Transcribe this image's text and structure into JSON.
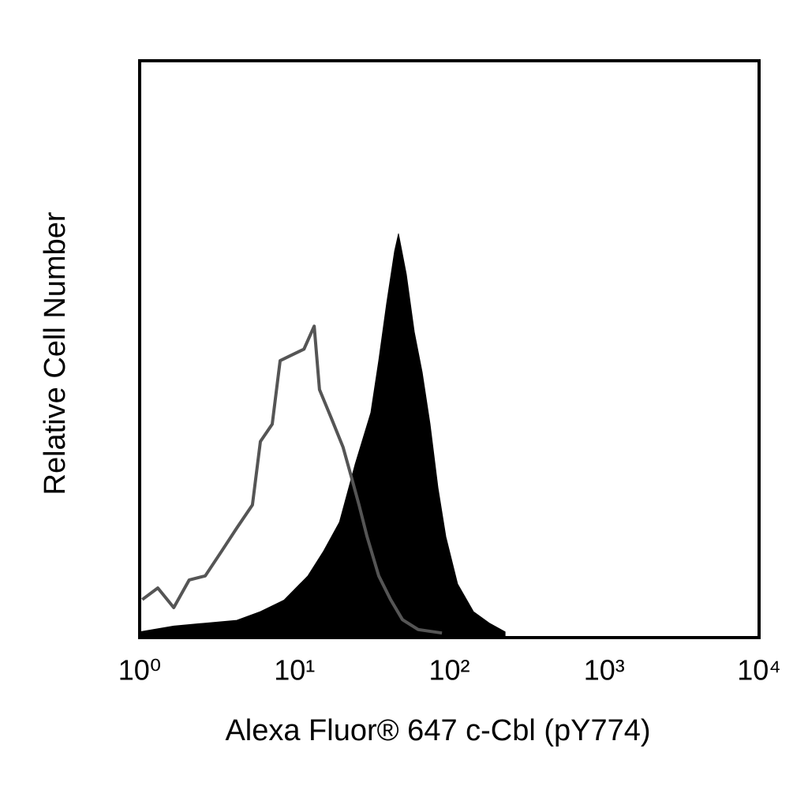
{
  "chart_data": {
    "type": "line",
    "x_label": "Alexa Fluor® 647 c-Cbl (pY774)",
    "y_label": "Relative Cell Number",
    "xscale": "log",
    "xlim": [
      1,
      10000
    ],
    "xticks": [
      {
        "value": 1,
        "label": "10⁰"
      },
      {
        "value": 10,
        "label": "10¹"
      },
      {
        "value": 100,
        "label": "10²"
      },
      {
        "value": 1000,
        "label": "10³"
      },
      {
        "value": 10000,
        "label": "10⁴"
      }
    ],
    "ylim": [
      0,
      100
    ],
    "grid": false,
    "series": [
      {
        "color": "#000000",
        "fill": true,
        "x": [
          1,
          1.66,
          2.65,
          4.24,
          6.02,
          8.56,
          12.2,
          15.4,
          19.5,
          24.6,
          31.1,
          35.0,
          39.4,
          44.3,
          46.9,
          52.7,
          59.3,
          66.7,
          75.0,
          84.4,
          94.9,
          113,
          143,
          181,
          229
        ],
        "values": [
          1,
          2,
          2.5,
          3,
          4.5,
          6.5,
          10.7,
          15,
          20,
          30,
          39,
          48,
          58,
          67,
          70,
          63,
          53,
          46,
          37,
          26,
          17.5,
          9.3,
          4.5,
          2.5,
          1
        ]
      },
      {
        "color": "#555555",
        "fill": false,
        "x": [
          1.04,
          1.31,
          1.66,
          2.09,
          2.65,
          3.35,
          4.24,
          5.35,
          6.02,
          7.18,
          8.07,
          9.62,
          11.5,
          13.4,
          14.5,
          17.3,
          20.6,
          23.2,
          26.1,
          29.4,
          35.0,
          41.7,
          49.8,
          62.9,
          89.6
        ],
        "values": [
          6.6,
          8.6,
          5.2,
          10,
          10.7,
          14.8,
          19,
          23,
          34,
          37,
          48,
          49,
          50,
          54,
          43,
          38,
          33,
          28,
          23,
          17.5,
          10.7,
          6.6,
          3.1,
          1.4,
          0.8
        ]
      }
    ]
  }
}
